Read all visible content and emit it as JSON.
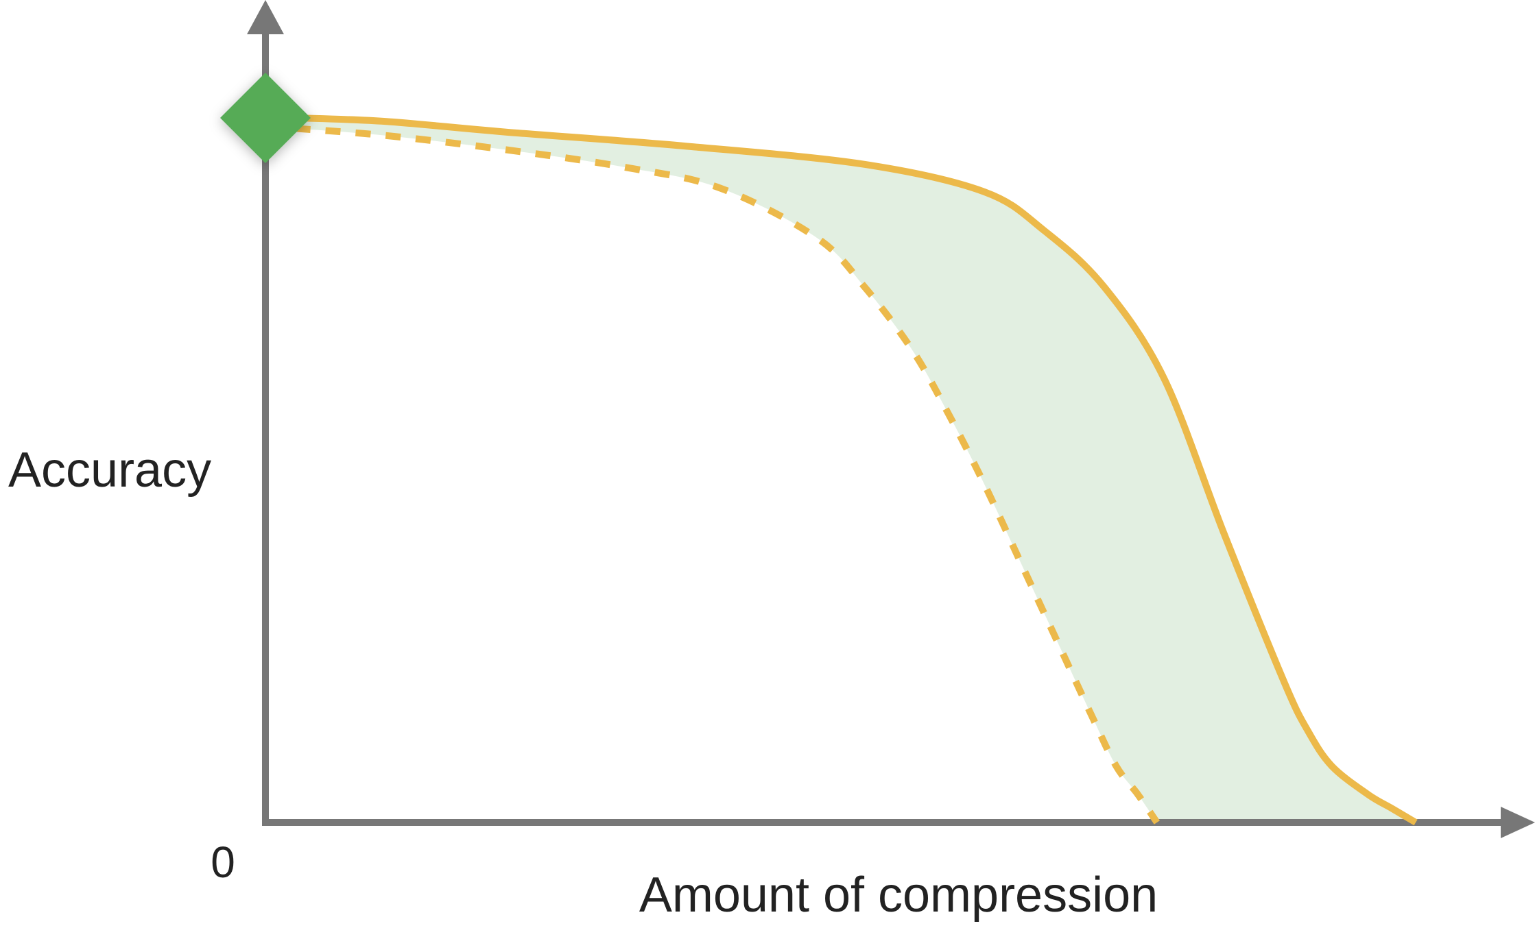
{
  "chart_data": {
    "type": "line",
    "title": "",
    "xlabel": "Amount of compression",
    "ylabel": "Accuracy",
    "origin_label": "0",
    "xlim": [
      0,
      100
    ],
    "ylim": [
      0,
      100
    ],
    "grid": false,
    "legend": "none",
    "colors": {
      "axis": "#777777",
      "curve": "#ECB94A",
      "band": "#E2EFE1",
      "marker": "#56AB56"
    },
    "band": {
      "between": [
        "upper",
        "lower"
      ]
    },
    "marker": {
      "shape": "diamond",
      "x": 0,
      "y": 100
    },
    "series": [
      {
        "id": "upper",
        "style": "solid",
        "x": [
          2.5,
          10,
          20,
          35,
          50,
          60,
          65,
          70,
          75,
          80,
          85,
          87,
          89,
          92,
          94,
          96
        ],
        "y": [
          100,
          99.5,
          98,
          96,
          93.4,
          89.5,
          84,
          76,
          63,
          41,
          20,
          13,
          8,
          4,
          2,
          0
        ]
      },
      {
        "id": "lower",
        "style": "dashed",
        "x": [
          2.5,
          10,
          20,
          30,
          38,
          46,
          50,
          54,
          57,
          60,
          63,
          66,
          69,
          71,
          72.8,
          74.4
        ],
        "y": [
          98.5,
          97.5,
          95.5,
          93,
          90,
          83,
          76,
          67,
          58,
          48,
          37,
          26,
          15,
          8,
          4,
          0
        ]
      }
    ]
  }
}
